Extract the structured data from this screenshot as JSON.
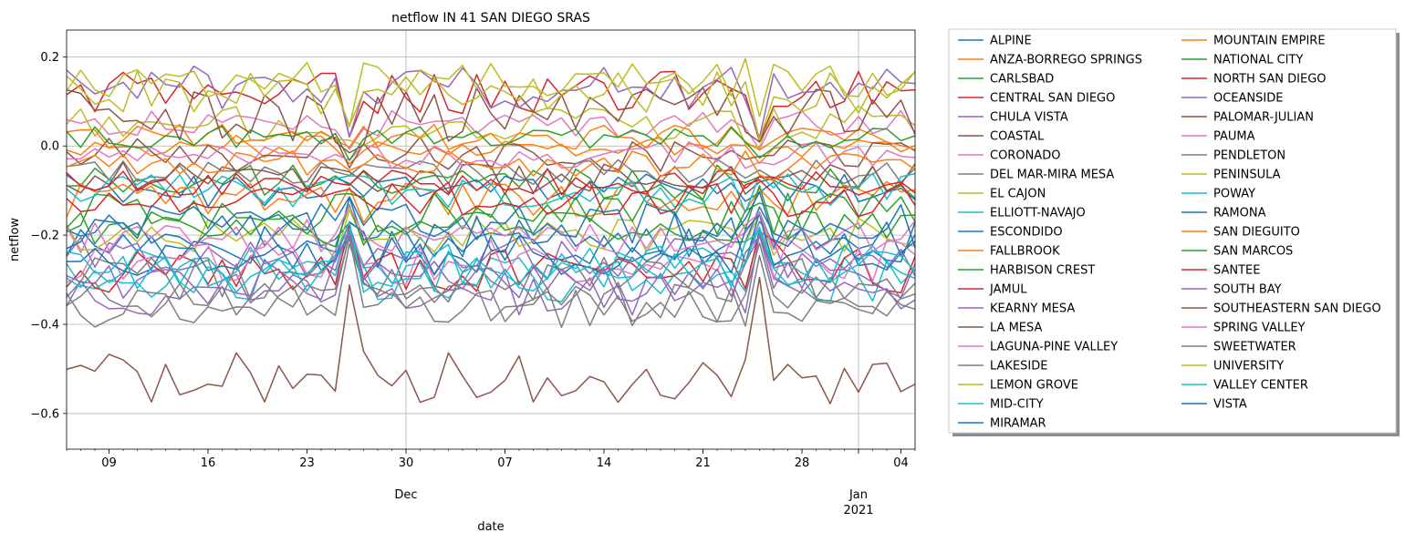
{
  "chart_data": {
    "type": "line",
    "title": "netflow IN 41 SAN DIEGO SRAS",
    "xlabel": "date",
    "ylabel": "netflow",
    "x_start": "2020-11-06",
    "x_end": "2021-01-05",
    "ylim": [
      -0.68,
      0.26
    ],
    "grid": true,
    "legend_position": "outside-right",
    "legend_columns": 2,
    "x_major_ticks": [
      {
        "date": "2020-11-09",
        "label": "09"
      },
      {
        "date": "2020-11-16",
        "label": "16"
      },
      {
        "date": "2020-11-23",
        "label": "23"
      },
      {
        "date": "2020-11-30",
        "label": "30",
        "sub": "Dec"
      },
      {
        "date": "2020-12-07",
        "label": "07"
      },
      {
        "date": "2020-12-14",
        "label": "14"
      },
      {
        "date": "2020-12-21",
        "label": "21"
      },
      {
        "date": "2020-12-28",
        "label": "28"
      },
      {
        "date": "2021-01-01",
        "label": "Jan",
        "sub": "2021"
      },
      {
        "date": "2021-01-04",
        "label": "04"
      }
    ],
    "x_gridlines": [
      "2020-11-30",
      "2021-01-01"
    ],
    "y_ticks": [
      {
        "value": 0.2,
        "label": "0.2"
      },
      {
        "value": 0.0,
        "label": "0.0"
      },
      {
        "value": -0.2,
        "label": "−0.2"
      },
      {
        "value": -0.4,
        "label": "−0.4"
      },
      {
        "value": -0.6,
        "label": "−0.6"
      }
    ],
    "series": [
      {
        "name": "ALPINE",
        "color": "#1f77b4",
        "level": -0.22,
        "amp": 0.05,
        "values": []
      },
      {
        "name": "ANZA-BORREGO SPRINGS",
        "color": "#ff7f0e",
        "level": 0.0,
        "amp": 0.025,
        "values": []
      },
      {
        "name": "CARLSBAD",
        "color": "#2ca02c",
        "level": -0.08,
        "amp": 0.04,
        "values": []
      },
      {
        "name": "CENTRAL SAN DIEGO",
        "color": "#d62728",
        "level": 0.12,
        "amp": 0.05,
        "values": []
      },
      {
        "name": "CHULA VISTA",
        "color": "#9467bd",
        "level": -0.25,
        "amp": 0.05,
        "values": []
      },
      {
        "name": "COASTAL",
        "color": "#8c564b",
        "level": -0.02,
        "amp": 0.04,
        "values": []
      },
      {
        "name": "CORONADO",
        "color": "#e377c2",
        "level": 0.05,
        "amp": 0.03,
        "values": []
      },
      {
        "name": "DEL MAR-MIRA MESA",
        "color": "#7f7f7f",
        "level": -0.06,
        "amp": 0.03,
        "values": []
      },
      {
        "name": "EL CAJON",
        "color": "#bcbd22",
        "level": -0.2,
        "amp": 0.04,
        "values": []
      },
      {
        "name": "ELLIOTT-NAVAJO",
        "color": "#17becf",
        "level": -0.3,
        "amp": 0.05,
        "values": []
      },
      {
        "name": "ESCONDIDO",
        "color": "#1f77b4",
        "level": -0.1,
        "amp": 0.04,
        "values": []
      },
      {
        "name": "FALLBROOK",
        "color": "#ff7f0e",
        "level": -0.12,
        "amp": 0.04,
        "values": []
      },
      {
        "name": "HARBISON CREST",
        "color": "#2ca02c",
        "level": -0.15,
        "amp": 0.05,
        "values": []
      },
      {
        "name": "JAMUL",
        "color": "#d62728",
        "level": -0.28,
        "amp": 0.05,
        "values": []
      },
      {
        "name": "KEARNY MESA",
        "color": "#9467bd",
        "level": -0.33,
        "amp": 0.05,
        "values": []
      },
      {
        "name": "LA MESA",
        "color": "#8c564b",
        "level": -0.07,
        "amp": 0.04,
        "values": []
      },
      {
        "name": "LAGUNA-PINE VALLEY",
        "color": "#e377c2",
        "level": -0.02,
        "amp": 0.03,
        "values": []
      },
      {
        "name": "LAKESIDE",
        "color": "#7f7f7f",
        "level": -0.35,
        "amp": 0.05,
        "values": []
      },
      {
        "name": "LEMON GROVE",
        "color": "#bcbd22",
        "level": 0.05,
        "amp": 0.04,
        "values": []
      },
      {
        "name": "MID-CITY",
        "color": "#17becf",
        "level": -0.1,
        "amp": 0.04,
        "values": []
      },
      {
        "name": "MIRAMAR",
        "color": "#1f77b4",
        "level": -0.2,
        "amp": 0.05,
        "values": []
      },
      {
        "name": "MOUNTAIN EMPIRE",
        "color": "#ff7f0e",
        "level": 0.02,
        "amp": 0.03,
        "values": []
      },
      {
        "name": "NATIONAL CITY",
        "color": "#2ca02c",
        "level": 0.02,
        "amp": 0.025,
        "values": []
      },
      {
        "name": "NORTH SAN DIEGO",
        "color": "#d62728",
        "level": -0.08,
        "amp": 0.03,
        "values": []
      },
      {
        "name": "OCEANSIDE",
        "color": "#9467bd",
        "level": 0.13,
        "amp": 0.05,
        "values": []
      },
      {
        "name": "PALOMAR-JULIAN",
        "color": "#8c564b",
        "level": 0.07,
        "amp": 0.06,
        "values": []
      },
      {
        "name": "PAUMA",
        "color": "#e377c2",
        "level": -0.26,
        "amp": 0.05,
        "values": []
      },
      {
        "name": "PENDLETON",
        "color": "#7f7f7f",
        "level": -0.3,
        "amp": 0.05,
        "values": []
      },
      {
        "name": "PENINSULA",
        "color": "#bcbd22",
        "level": 0.15,
        "amp": 0.04,
        "values": []
      },
      {
        "name": "POWAY",
        "color": "#17becf",
        "level": -0.27,
        "amp": 0.05,
        "values": []
      },
      {
        "name": "RAMONA",
        "color": "#1f77b4",
        "level": -0.24,
        "amp": 0.05,
        "values": []
      },
      {
        "name": "SAN DIEGUITO",
        "color": "#ff7f0e",
        "level": -0.04,
        "amp": 0.03,
        "values": []
      },
      {
        "name": "SAN MARCOS",
        "color": "#2ca02c",
        "level": -0.18,
        "amp": 0.04,
        "values": []
      },
      {
        "name": "SANTEE",
        "color": "#d62728",
        "level": -0.12,
        "amp": 0.04,
        "values": []
      },
      {
        "name": "SOUTH BAY",
        "color": "#9467bd",
        "level": -0.3,
        "amp": 0.05,
        "values": []
      },
      {
        "name": "SOUTHEASTERN SAN DIEGO",
        "color": "#8c564b",
        "level": -0.52,
        "amp": 0.06,
        "values": []
      },
      {
        "name": "SPRING VALLEY",
        "color": "#e377c2",
        "level": -0.2,
        "amp": 0.04,
        "values": []
      },
      {
        "name": "SWEETWATER",
        "color": "#7f7f7f",
        "level": -0.36,
        "amp": 0.05,
        "values": []
      },
      {
        "name": "UNIVERSITY",
        "color": "#bcbd22",
        "level": 0.12,
        "amp": 0.05,
        "values": []
      },
      {
        "name": "VALLEY CENTER",
        "color": "#17becf",
        "level": -0.28,
        "amp": 0.05,
        "values": []
      },
      {
        "name": "VISTA",
        "color": "#1f77b4",
        "level": -0.18,
        "amp": 0.05,
        "values": []
      }
    ]
  }
}
